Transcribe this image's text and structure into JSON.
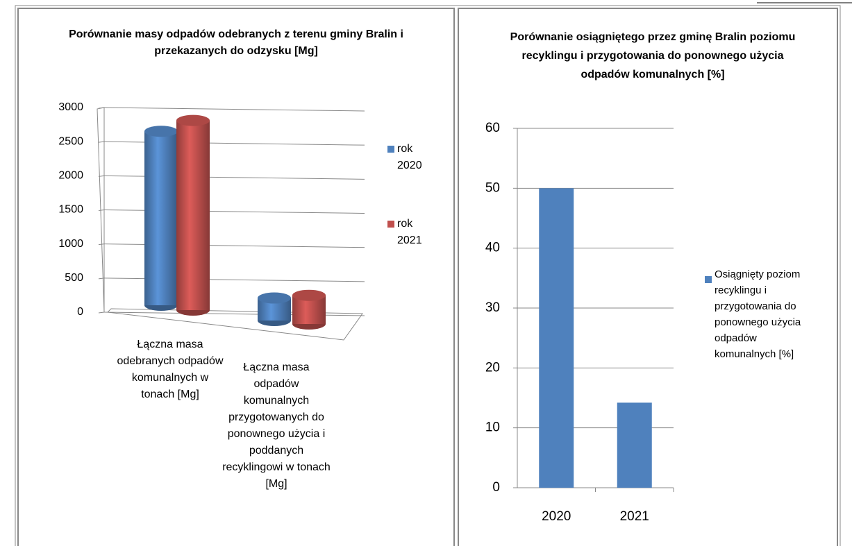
{
  "chart_data": [
    {
      "type": "bar3d",
      "title": "Porównanie masy odpadów  odebranych z terenu gminy Bralin i przekazanych do odzysku [Mg]",
      "categories": [
        "Łączna masa odebranych odpadów komunalnych w tonach [Mg]",
        "Łączna masa odpadów komunalnych przygotowanych do ponownego użycia i poddanych recyklingowi w tonach [Mg]"
      ],
      "series": [
        {
          "name": "rok 2020",
          "color": "#4f81bd",
          "values": [
            2550,
            330
          ]
        },
        {
          "name": "rok 2021",
          "color": "#c0504d",
          "values": [
            2780,
            420
          ]
        }
      ],
      "ylim": [
        0,
        3000
      ],
      "yticks": [
        0,
        500,
        1000,
        1500,
        2000,
        2500,
        3000
      ],
      "grid": true,
      "legend": "right"
    },
    {
      "type": "bar",
      "title": "Porównanie osiągniętego przez gminę Bralin poziomu recyklingu i przygotowania do ponownego użycia odpadów komunalnych [%]",
      "categories": [
        "2020",
        "2021"
      ],
      "series": [
        {
          "name": "Osiągnięty poziom recyklingu i przygotowania do ponownego użycia odpadów komunalnych [%]",
          "color": "#4f81bd",
          "values": [
            50,
            14.2
          ]
        }
      ],
      "ylim": [
        0,
        60
      ],
      "yticks": [
        0,
        10,
        20,
        30,
        40,
        50,
        60
      ],
      "grid": true,
      "legend": "right"
    }
  ]
}
